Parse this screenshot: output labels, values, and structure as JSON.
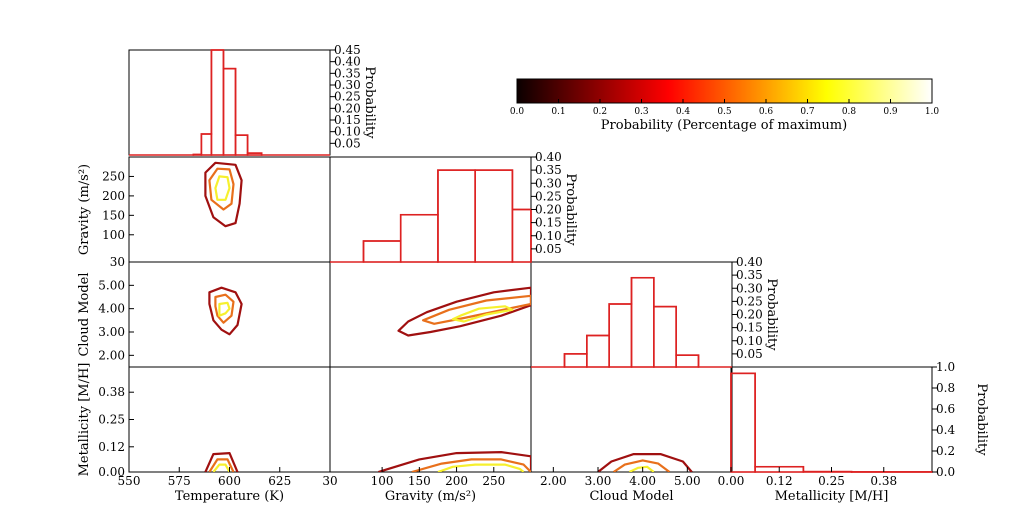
{
  "chart_data": {
    "type": "corner",
    "variables": [
      {
        "name": "Temperature",
        "xlabel": "Temperature (K)",
        "ylabel": ""
      },
      {
        "name": "Gravity",
        "xlabel": "Gravity (m/s²)",
        "ylabel": "Gravity (m/s²)"
      },
      {
        "name": "Cloud Model",
        "xlabel": "Cloud Model",
        "ylabel": "Cloud Model"
      },
      {
        "name": "Metallicity",
        "xlabel": "Metallicity [M/H]",
        "ylabel": "Metallicity [M/H]"
      }
    ],
    "diag_ylabel": "Probability",
    "colorbar": {
      "label": "Probability (Percentage of maximum)",
      "ticks": [
        "0.0",
        "0.1",
        "0.2",
        "0.3",
        "0.4",
        "0.5",
        "0.6",
        "0.7",
        "0.8",
        "0.9",
        "1.0"
      ],
      "range": [
        0,
        1
      ],
      "colormap": "hot"
    },
    "hist_color": "#dd2222",
    "contour_colors": [
      "#a01010",
      "#e8701c",
      "#f6f02e"
    ],
    "histograms": [
      {
        "var": "Temperature",
        "xlim": [
          550,
          650
        ],
        "ylim": [
          0,
          0.45
        ],
        "xticks": [
          "550",
          "575",
          "600",
          "625"
        ],
        "yticks": [
          "0.05",
          "0.10",
          "0.15",
          "0.20",
          "0.25",
          "0.30",
          "0.35",
          "0.40",
          "0.45"
        ],
        "bins": [
          {
            "x0": 582,
            "x1": 586,
            "value": 0.002
          },
          {
            "x0": 586,
            "x1": 591,
            "value": 0.09
          },
          {
            "x0": 591,
            "x1": 597,
            "value": 0.45
          },
          {
            "x0": 597,
            "x1": 603,
            "value": 0.37
          },
          {
            "x0": 603,
            "x1": 609,
            "value": 0.085
          },
          {
            "x0": 609,
            "x1": 616,
            "value": 0.008
          }
        ]
      },
      {
        "var": "Gravity",
        "xlim": [
          30,
          300
        ],
        "ylim": [
          0,
          0.4
        ],
        "xticks": [
          "30",
          "100",
          "150",
          "200",
          "250"
        ],
        "yticks": [
          "0.05",
          "0.10",
          "0.15",
          "0.20",
          "0.25",
          "0.30",
          "0.35",
          "0.40"
        ],
        "bins": [
          {
            "x0": 45,
            "x1": 75,
            "value": 0.0
          },
          {
            "x0": 75,
            "x1": 125,
            "value": 0.08
          },
          {
            "x0": 125,
            "x1": 175,
            "value": 0.18
          },
          {
            "x0": 175,
            "x1": 225,
            "value": 0.35
          },
          {
            "x0": 225,
            "x1": 275,
            "value": 0.35
          },
          {
            "x0": 275,
            "x1": 300,
            "value": 0.2
          }
        ]
      },
      {
        "var": "Cloud Model",
        "xlim": [
          1.5,
          6.0
        ],
        "ylim": [
          0,
          0.4
        ],
        "xticks": [
          "2.00",
          "3.00",
          "4.00",
          "5.00"
        ],
        "yticks": [
          "0.05",
          "0.10",
          "0.15",
          "0.20",
          "0.25",
          "0.30",
          "0.35",
          "0.40"
        ],
        "bins": [
          {
            "x0": 2.25,
            "x1": 2.75,
            "value": 0.05
          },
          {
            "x0": 2.75,
            "x1": 3.25,
            "value": 0.12
          },
          {
            "x0": 3.25,
            "x1": 3.75,
            "value": 0.24
          },
          {
            "x0": 3.75,
            "x1": 4.25,
            "value": 0.34
          },
          {
            "x0": 4.25,
            "x1": 4.75,
            "value": 0.23
          },
          {
            "x0": 4.75,
            "x1": 5.25,
            "value": 0.045
          }
        ]
      },
      {
        "var": "Metallicity",
        "xlim": [
          0.0,
          0.5
        ],
        "ylim": [
          0,
          1.0
        ],
        "xticks": [
          "0.00",
          "0.12",
          "0.25",
          "0.38"
        ],
        "yticks": [
          "0.0",
          "0.2",
          "0.4",
          "0.6",
          "0.8",
          "1.0"
        ],
        "bins": [
          {
            "x0": 0.0,
            "x1": 0.06,
            "value": 0.94
          },
          {
            "x0": 0.06,
            "x1": 0.18,
            "value": 0.05
          },
          {
            "x0": 0.18,
            "x1": 0.3,
            "value": 0.003
          },
          {
            "x0": 0.3,
            "x1": 0.5,
            "value": 0.001
          }
        ]
      }
    ],
    "joint_axes": {
      "Temperature": {
        "lim": [
          550,
          650
        ],
        "ticks": [
          "550",
          "575",
          "600",
          "625"
        ]
      },
      "Gravity": {
        "lim": [
          30,
          300
        ],
        "ticks": [
          "30",
          "100",
          "150",
          "200",
          "250"
        ]
      },
      "Cloud Model": {
        "lim": [
          1.5,
          6.0
        ],
        "ticks": [
          "2.00",
          "3.00",
          "4.00",
          "5.00"
        ]
      },
      "Metallicity": {
        "lim": [
          0.0,
          0.5
        ],
        "ticks": [
          "0.00",
          "0.12",
          "0.25",
          "0.38"
        ]
      }
    },
    "contours": [
      {
        "x": "Temperature",
        "y": "Gravity",
        "levels": [
          [
            [
              593,
              285
            ],
            [
              603,
              280
            ],
            [
              606,
              240
            ],
            [
              605,
              180
            ],
            [
              603,
              130
            ],
            [
              598,
              122
            ],
            [
              592,
              145
            ],
            [
              588,
              200
            ],
            [
              588,
              260
            ]
          ],
          [
            [
              594,
              270
            ],
            [
              600,
              268
            ],
            [
              602,
              230
            ],
            [
              601,
              180
            ],
            [
              597,
              165
            ],
            [
              591,
              190
            ],
            [
              590,
              240
            ]
          ],
          [
            [
              595,
              250
            ],
            [
              599,
              248
            ],
            [
              600,
              220
            ],
            [
              598,
              190
            ],
            [
              594,
              190
            ],
            [
              593,
              220
            ]
          ]
        ]
      },
      {
        "x": "Temperature",
        "y": "Cloud Model",
        "levels": [
          [
            [
              590,
              4.7
            ],
            [
              596,
              4.9
            ],
            [
              603,
              4.7
            ],
            [
              606,
              4.2
            ],
            [
              604,
              3.3
            ],
            [
              600,
              2.9
            ],
            [
              596,
              3.1
            ],
            [
              592,
              3.5
            ],
            [
              590,
              4.2
            ]
          ],
          [
            [
              593,
              4.5
            ],
            [
              598,
              4.6
            ],
            [
              602,
              4.3
            ],
            [
              601,
              3.7
            ],
            [
              597,
              3.4
            ],
            [
              594,
              3.7
            ],
            [
              593,
              4.1
            ]
          ],
          [
            [
              595,
              4.2
            ],
            [
              599,
              4.25
            ],
            [
              600,
              4.0
            ],
            [
              598,
              3.8
            ],
            [
              595,
              3.7
            ]
          ]
        ]
      },
      {
        "x": "Temperature",
        "y": "Metallicity",
        "levels": [
          [
            [
              588,
              0.0
            ],
            [
              592,
              0.085
            ],
            [
              600,
              0.09
            ],
            [
              604,
              0.0
            ]
          ],
          [
            [
              590,
              0.0
            ],
            [
              594,
              0.06
            ],
            [
              599,
              0.06
            ],
            [
              602,
              0.0
            ]
          ],
          [
            [
              592,
              0.0
            ],
            [
              595,
              0.035
            ],
            [
              598,
              0.035
            ],
            [
              600,
              0.0
            ]
          ]
        ]
      },
      {
        "x": "Gravity",
        "y": "Cloud Model",
        "levels": [
          [
            [
              122,
              3.05
            ],
            [
              135,
              3.45
            ],
            [
              160,
              3.85
            ],
            [
              200,
              4.3
            ],
            [
              250,
              4.7
            ],
            [
              300,
              4.9
            ],
            [
              300,
              4.15
            ],
            [
              260,
              3.7
            ],
            [
              205,
              3.25
            ],
            [
              165,
              3.0
            ],
            [
              135,
              2.85
            ]
          ],
          [
            [
              155,
              3.5
            ],
            [
              190,
              3.95
            ],
            [
              240,
              4.35
            ],
            [
              300,
              4.55
            ],
            [
              300,
              4.2
            ],
            [
              255,
              3.9
            ],
            [
              210,
              3.6
            ],
            [
              170,
              3.35
            ]
          ],
          [
            [
              195,
              3.55
            ],
            [
              205,
              3.7
            ],
            [
              230,
              4.0
            ],
            [
              265,
              4.1
            ],
            [
              275,
              3.95
            ],
            [
              240,
              3.75
            ],
            [
              210,
              3.45
            ]
          ]
        ]
      },
      {
        "x": "Gravity",
        "y": "Metallicity",
        "levels": [
          [
            [
              95,
              0.0
            ],
            [
              150,
              0.06
            ],
            [
              200,
              0.09
            ],
            [
              260,
              0.095
            ],
            [
              300,
              0.075
            ],
            [
              300,
              0.0
            ]
          ],
          [
            [
              140,
              0.0
            ],
            [
              180,
              0.04
            ],
            [
              220,
              0.06
            ],
            [
              260,
              0.06
            ],
            [
              290,
              0.035
            ],
            [
              300,
              0.0
            ]
          ],
          [
            [
              175,
              0.0
            ],
            [
              195,
              0.025
            ],
            [
              225,
              0.035
            ],
            [
              265,
              0.035
            ],
            [
              285,
              0.015
            ],
            [
              290,
              0.0
            ]
          ]
        ]
      },
      {
        "x": "Cloud Model",
        "y": "Metallicity",
        "levels": [
          [
            [
              3.0,
              0.0
            ],
            [
              3.3,
              0.05
            ],
            [
              3.8,
              0.085
            ],
            [
              4.4,
              0.085
            ],
            [
              4.9,
              0.05
            ],
            [
              5.1,
              0.0
            ]
          ],
          [
            [
              3.35,
              0.0
            ],
            [
              3.6,
              0.035
            ],
            [
              4.0,
              0.055
            ],
            [
              4.35,
              0.04
            ],
            [
              4.6,
              0.0
            ]
          ],
          [
            [
              3.7,
              0.0
            ],
            [
              3.9,
              0.02
            ],
            [
              4.1,
              0.025
            ],
            [
              4.25,
              0.0
            ]
          ]
        ]
      }
    ]
  }
}
